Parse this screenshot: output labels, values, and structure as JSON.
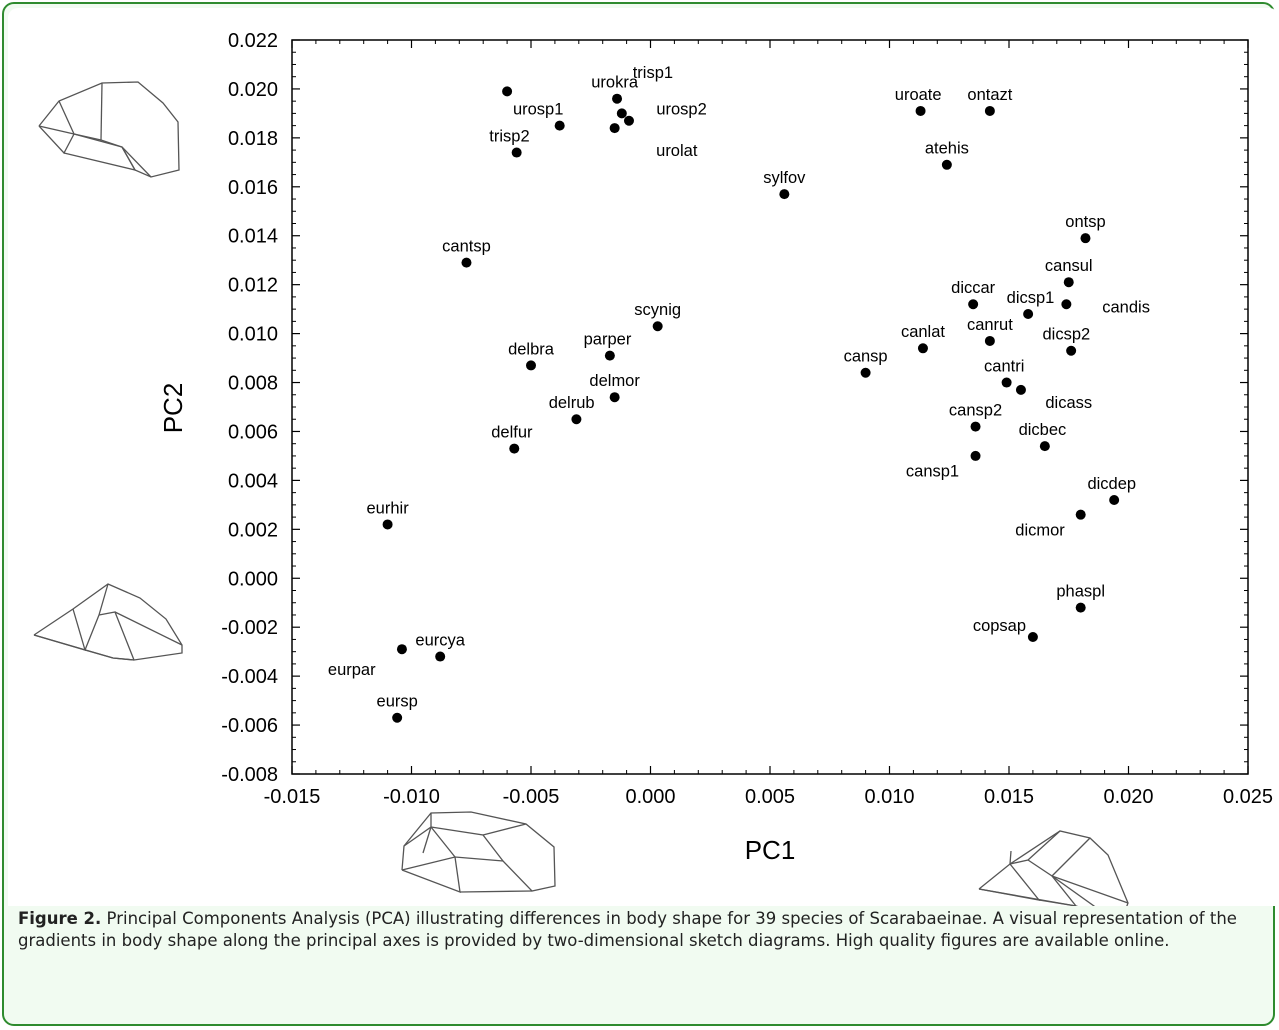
{
  "chart_data": {
    "type": "scatter",
    "xlabel": "PC1",
    "ylabel": "PC2",
    "xlim": [
      -0.015,
      0.025
    ],
    "ylim": [
      -0.008,
      0.022
    ],
    "x_ticks": [
      "-0.015",
      "-0.010",
      "-0.005",
      "0.000",
      "0.005",
      "0.010",
      "0.015",
      "0.020",
      "0.025"
    ],
    "y_ticks": [
      "0.022",
      "0.020",
      "0.018",
      "0.016",
      "0.014",
      "0.012",
      "0.010",
      "0.008",
      "0.006",
      "0.004",
      "0.002",
      "0.000",
      "-0.002",
      "-0.004",
      "-0.006",
      "-0.008"
    ],
    "grid": false,
    "points": [
      {
        "label": "trisp1",
        "x": -0.006,
        "y": 0.0199,
        "lx": 0.0001,
        "ly": 0.0207
      },
      {
        "label": "trisp2",
        "x": -0.0056,
        "y": 0.0174,
        "lx": -0.0059,
        "ly": 0.0181
      },
      {
        "label": "urosp1",
        "x": -0.0038,
        "y": 0.0185,
        "lx": -0.0047,
        "ly": 0.0192
      },
      {
        "label": "urokra",
        "x": -0.0014,
        "y": 0.0196,
        "lx": -0.0015,
        "ly": 0.0203
      },
      {
        "label": "urosp2",
        "x": -0.0012,
        "y": 0.019,
        "lx": 0.0013,
        "ly": 0.0192
      },
      {
        "label": "urolat",
        "x": -0.0009,
        "y": 0.0187,
        "lx": 0.0011,
        "ly": 0.0175
      },
      {
        "label": "urolat_dot",
        "x": -0.0015,
        "y": 0.0184,
        "lx": null,
        "ly": null
      },
      {
        "label": "sylfov",
        "x": 0.0056,
        "y": 0.0157,
        "lx": 0.0056,
        "ly": 0.0164
      },
      {
        "label": "uroate",
        "x": 0.0113,
        "y": 0.0191,
        "lx": 0.0112,
        "ly": 0.0198
      },
      {
        "label": "ontazt",
        "x": 0.0142,
        "y": 0.0191,
        "lx": 0.0142,
        "ly": 0.0198
      },
      {
        "label": "atehis",
        "x": 0.0124,
        "y": 0.0169,
        "lx": 0.0124,
        "ly": 0.0176
      },
      {
        "label": "ontsp",
        "x": 0.0182,
        "y": 0.0139,
        "lx": 0.0182,
        "ly": 0.0146
      },
      {
        "label": "cansul",
        "x": 0.0175,
        "y": 0.0121,
        "lx": 0.0175,
        "ly": 0.0128
      },
      {
        "label": "candis",
        "x": 0.0174,
        "y": 0.0112,
        "lx": 0.0199,
        "ly": 0.0111
      },
      {
        "label": "dicsp1",
        "x": 0.0158,
        "y": 0.0108,
        "lx": 0.0159,
        "ly": 0.0115
      },
      {
        "label": "diccar",
        "x": 0.0135,
        "y": 0.0112,
        "lx": 0.0135,
        "ly": 0.0119
      },
      {
        "label": "canrut",
        "x": 0.0142,
        "y": 0.0097,
        "lx": 0.0142,
        "ly": 0.0104
      },
      {
        "label": "dicsp2",
        "x": 0.0176,
        "y": 0.0093,
        "lx": 0.0174,
        "ly": 0.01
      },
      {
        "label": "canlat",
        "x": 0.0114,
        "y": 0.0094,
        "lx": 0.0114,
        "ly": 0.0101
      },
      {
        "label": "cansp",
        "x": 0.009,
        "y": 0.0084,
        "lx": 0.009,
        "ly": 0.0091
      },
      {
        "label": "cantri",
        "x": 0.0149,
        "y": 0.008,
        "lx": 0.0148,
        "ly": 0.0087
      },
      {
        "label": "dicass",
        "x": 0.0155,
        "y": 0.0077,
        "lx": 0.0175,
        "ly": 0.0072
      },
      {
        "label": "cansp2",
        "x": 0.0136,
        "y": 0.0062,
        "lx": 0.0136,
        "ly": 0.0069
      },
      {
        "label": "dicbec",
        "x": 0.0165,
        "y": 0.0054,
        "lx": 0.0164,
        "ly": 0.0061
      },
      {
        "label": "cansp1",
        "x": 0.0136,
        "y": 0.005,
        "lx": 0.0118,
        "ly": 0.0044
      },
      {
        "label": "dicdep",
        "x": 0.0194,
        "y": 0.0032,
        "lx": 0.0193,
        "ly": 0.0039
      },
      {
        "label": "dicmor",
        "x": 0.018,
        "y": 0.0026,
        "lx": 0.0163,
        "ly": 0.002
      },
      {
        "label": "phaspl",
        "x": 0.018,
        "y": -0.0012,
        "lx": 0.018,
        "ly": -0.0005
      },
      {
        "label": "copsap",
        "x": 0.016,
        "y": -0.0024,
        "lx": 0.0146,
        "ly": -0.0019
      },
      {
        "label": "cantsp",
        "x": -0.0077,
        "y": 0.0129,
        "lx": -0.0077,
        "ly": 0.0136
      },
      {
        "label": "scynig",
        "x": 0.0003,
        "y": 0.0103,
        "lx": 0.0003,
        "ly": 0.011
      },
      {
        "label": "parper",
        "x": -0.0017,
        "y": 0.0091,
        "lx": -0.0018,
        "ly": 0.0098
      },
      {
        "label": "delbra",
        "x": -0.005,
        "y": 0.0087,
        "lx": -0.005,
        "ly": 0.0094
      },
      {
        "label": "delmor",
        "x": -0.0015,
        "y": 0.0074,
        "lx": -0.0015,
        "ly": 0.0081
      },
      {
        "label": "delrub",
        "x": -0.0031,
        "y": 0.0065,
        "lx": -0.0033,
        "ly": 0.0072
      },
      {
        "label": "delfur",
        "x": -0.0057,
        "y": 0.0053,
        "lx": -0.0058,
        "ly": 0.006
      },
      {
        "label": "eurhir",
        "x": -0.011,
        "y": 0.0022,
        "lx": -0.011,
        "ly": 0.0029
      },
      {
        "label": "eurcya",
        "x": -0.0088,
        "y": -0.0032,
        "lx": -0.0088,
        "ly": -0.0025
      },
      {
        "label": "eurpar",
        "x": -0.0104,
        "y": -0.0029,
        "lx": -0.0125,
        "ly": -0.0037
      },
      {
        "label": "eursp",
        "x": -0.0106,
        "y": -0.0057,
        "lx": -0.0106,
        "ly": -0.005
      }
    ]
  },
  "caption": {
    "label": "Figure 2.",
    "text": " Principal Components Analysis (PCA) illustrating differences in body shape for 39 species of Scarabaeinae. A visual representation of the gradients in body shape along the principal axes is provided by two-dimensional sketch diagrams. High quality figures are available online."
  }
}
